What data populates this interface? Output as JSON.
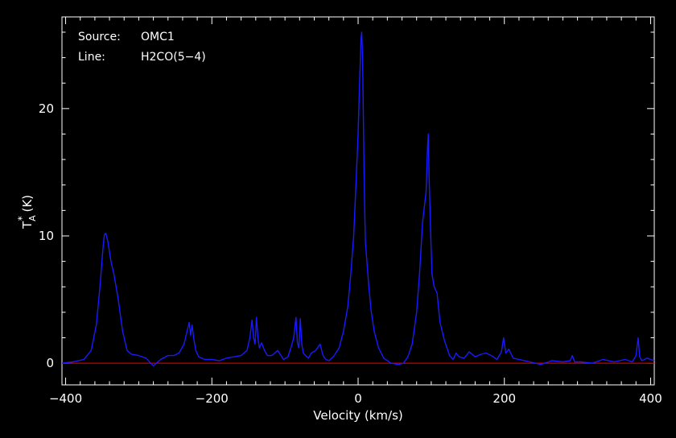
{
  "info": {
    "source_label": "Source:",
    "source_value": "OMC1",
    "line_label": "Line:",
    "line_value": "H2CO(5−4)"
  },
  "colors": {
    "background": "#000000",
    "frame": "#ffffff",
    "spectrum": "#1a1aff",
    "baseline": "#cc0000"
  },
  "chart_data": {
    "type": "line",
    "xlabel": "Velocity (km/s)",
    "ylabel": "T*A (K)",
    "ylabel_parts": {
      "main": "T",
      "super": "*",
      "sub": "A",
      "rest": " (K)"
    },
    "xlim": [
      -405,
      405
    ],
    "ylim": [
      -1.7,
      27.2
    ],
    "xticks": [
      -400,
      -200,
      0,
      200,
      400
    ],
    "xtick_labels": [
      "−400",
      "−200",
      "0",
      "200",
      "400"
    ],
    "yticks": [
      0,
      10,
      20
    ],
    "ytick_labels": [
      "0",
      "10",
      "20"
    ],
    "grid": false,
    "baseline": {
      "y": 0,
      "color": "#cc0000"
    },
    "series": [
      {
        "color": "#1a1aff",
        "x": [
          -405,
          -390,
          -375,
          -365,
          -358,
          -353,
          -349,
          -347,
          -345,
          -342,
          -338,
          -334,
          -328,
          -322,
          -316,
          -310,
          -300,
          -290,
          -280,
          -270,
          -260,
          -252,
          -245,
          -238,
          -234,
          -231,
          -229,
          -227,
          -225,
          -222,
          -218,
          -210,
          -200,
          -190,
          -180,
          -170,
          -160,
          -152,
          -148,
          -145,
          -143,
          -141,
          -139,
          -137,
          -135,
          -132,
          -128,
          -124,
          -118,
          -110,
          -102,
          -96,
          -92,
          -88,
          -85,
          -83,
          -81,
          -79,
          -77,
          -75,
          -72,
          -68,
          -64,
          -58,
          -52,
          -49,
          -47,
          -44,
          -40,
          -34,
          -26,
          -20,
          -14,
          -10,
          -6,
          -3,
          0,
          2,
          4,
          5,
          6,
          7,
          8,
          9,
          10,
          12,
          15,
          18,
          22,
          28,
          35,
          45,
          55,
          62,
          68,
          74,
          80,
          84,
          88,
          91,
          93,
          95,
          96,
          97,
          99,
          101,
          104,
          108,
          112,
          118,
          125,
          130,
          134,
          138,
          145,
          152,
          160,
          168,
          175,
          182,
          190,
          196,
          199,
          202,
          206,
          212,
          220,
          235,
          250,
          265,
          280,
          290,
          293,
          296,
          305,
          320,
          335,
          350,
          365,
          375,
          380,
          383,
          385,
          388,
          395,
          405
        ],
        "y": [
          0,
          0.1,
          0.3,
          1.0,
          3.0,
          6.0,
          9.0,
          10.1,
          10.2,
          9.5,
          8.0,
          7.0,
          5.0,
          2.5,
          1.0,
          0.7,
          0.6,
          0.4,
          -0.2,
          0.3,
          0.6,
          0.6,
          0.8,
          1.5,
          2.5,
          3.2,
          2.2,
          3.0,
          2.0,
          1.0,
          0.5,
          0.3,
          0.3,
          0.2,
          0.4,
          0.5,
          0.6,
          1.0,
          2.0,
          3.4,
          2.0,
          1.5,
          3.6,
          2.0,
          1.2,
          1.6,
          1.0,
          0.6,
          0.6,
          1.0,
          0.3,
          0.5,
          1.2,
          2.0,
          3.6,
          1.6,
          1.2,
          3.5,
          1.5,
          0.8,
          0.6,
          0.4,
          0.8,
          1.0,
          1.5,
          0.8,
          0.5,
          0.3,
          0.2,
          0.5,
          1.2,
          2.5,
          4.5,
          7.0,
          10.0,
          14.0,
          18.0,
          22.0,
          25.5,
          26.0,
          24.0,
          20.0,
          15.5,
          12.0,
          9.5,
          8.0,
          5.8,
          4.0,
          2.5,
          1.2,
          0.4,
          0.0,
          -0.1,
          0.0,
          0.5,
          1.5,
          4.0,
          7.0,
          11.0,
          12.5,
          13.5,
          17.0,
          18.0,
          15.0,
          10.5,
          7.0,
          6.0,
          5.5,
          3.2,
          1.8,
          0.6,
          0.3,
          0.8,
          0.5,
          0.4,
          0.9,
          0.5,
          0.7,
          0.8,
          0.6,
          0.3,
          0.9,
          2.0,
          0.8,
          1.1,
          0.4,
          0.3,
          0.1,
          -0.1,
          0.2,
          0.1,
          0.2,
          0.6,
          0.1,
          0.1,
          0.0,
          0.3,
          0.1,
          0.3,
          0.1,
          0.6,
          2.0,
          0.5,
          0.2,
          0.4,
          0.2
        ]
      }
    ]
  }
}
